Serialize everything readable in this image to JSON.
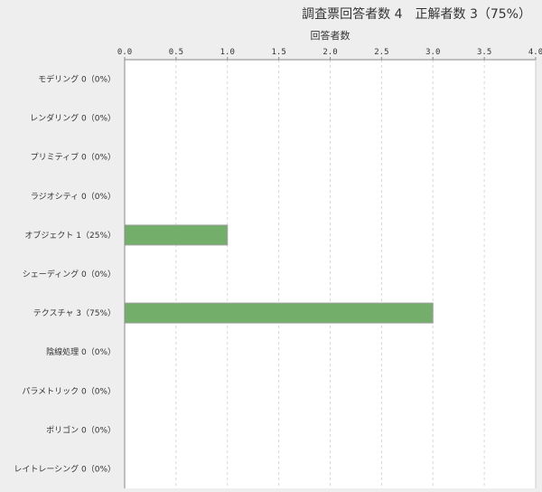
{
  "chart_data": {
    "type": "bar",
    "orientation": "horizontal",
    "title": "調査票回答者数 4　正解者数 3（75%）",
    "xlabel": "回答者数",
    "ylabel": "",
    "xlim": [
      0,
      4
    ],
    "x_ticks": [
      "0.0",
      "0.5",
      "1.0",
      "1.5",
      "2.0",
      "2.5",
      "3.0",
      "3.5",
      "4.0"
    ],
    "x_axis_position": "top",
    "grid": true,
    "bar_color": "#73ae6a",
    "categories": [
      "モデリング",
      "レンダリング",
      "プリミティブ",
      "ラジオシティ",
      "オブジェクト",
      "シェーディング",
      "テクスチャ",
      "陰線処理",
      "パラメトリック",
      "ポリゴン",
      "レイトレーシング"
    ],
    "values": [
      0,
      0,
      0,
      0,
      1,
      0,
      3,
      0,
      0,
      0,
      0
    ],
    "category_labels": [
      "モデリング 0（0%）",
      "レンダリング 0（0%）",
      "プリミティブ 0（0%）",
      "ラジオシティ 0（0%）",
      "オブジェクト 1（25%）",
      "シェーディング 0（0%）",
      "テクスチャ 3（75%）",
      "陰線処理 0（0%）",
      "パラメトリック 0（0%）",
      "ポリゴン 0（0%）",
      "レイトレーシング 0（0%）"
    ]
  }
}
